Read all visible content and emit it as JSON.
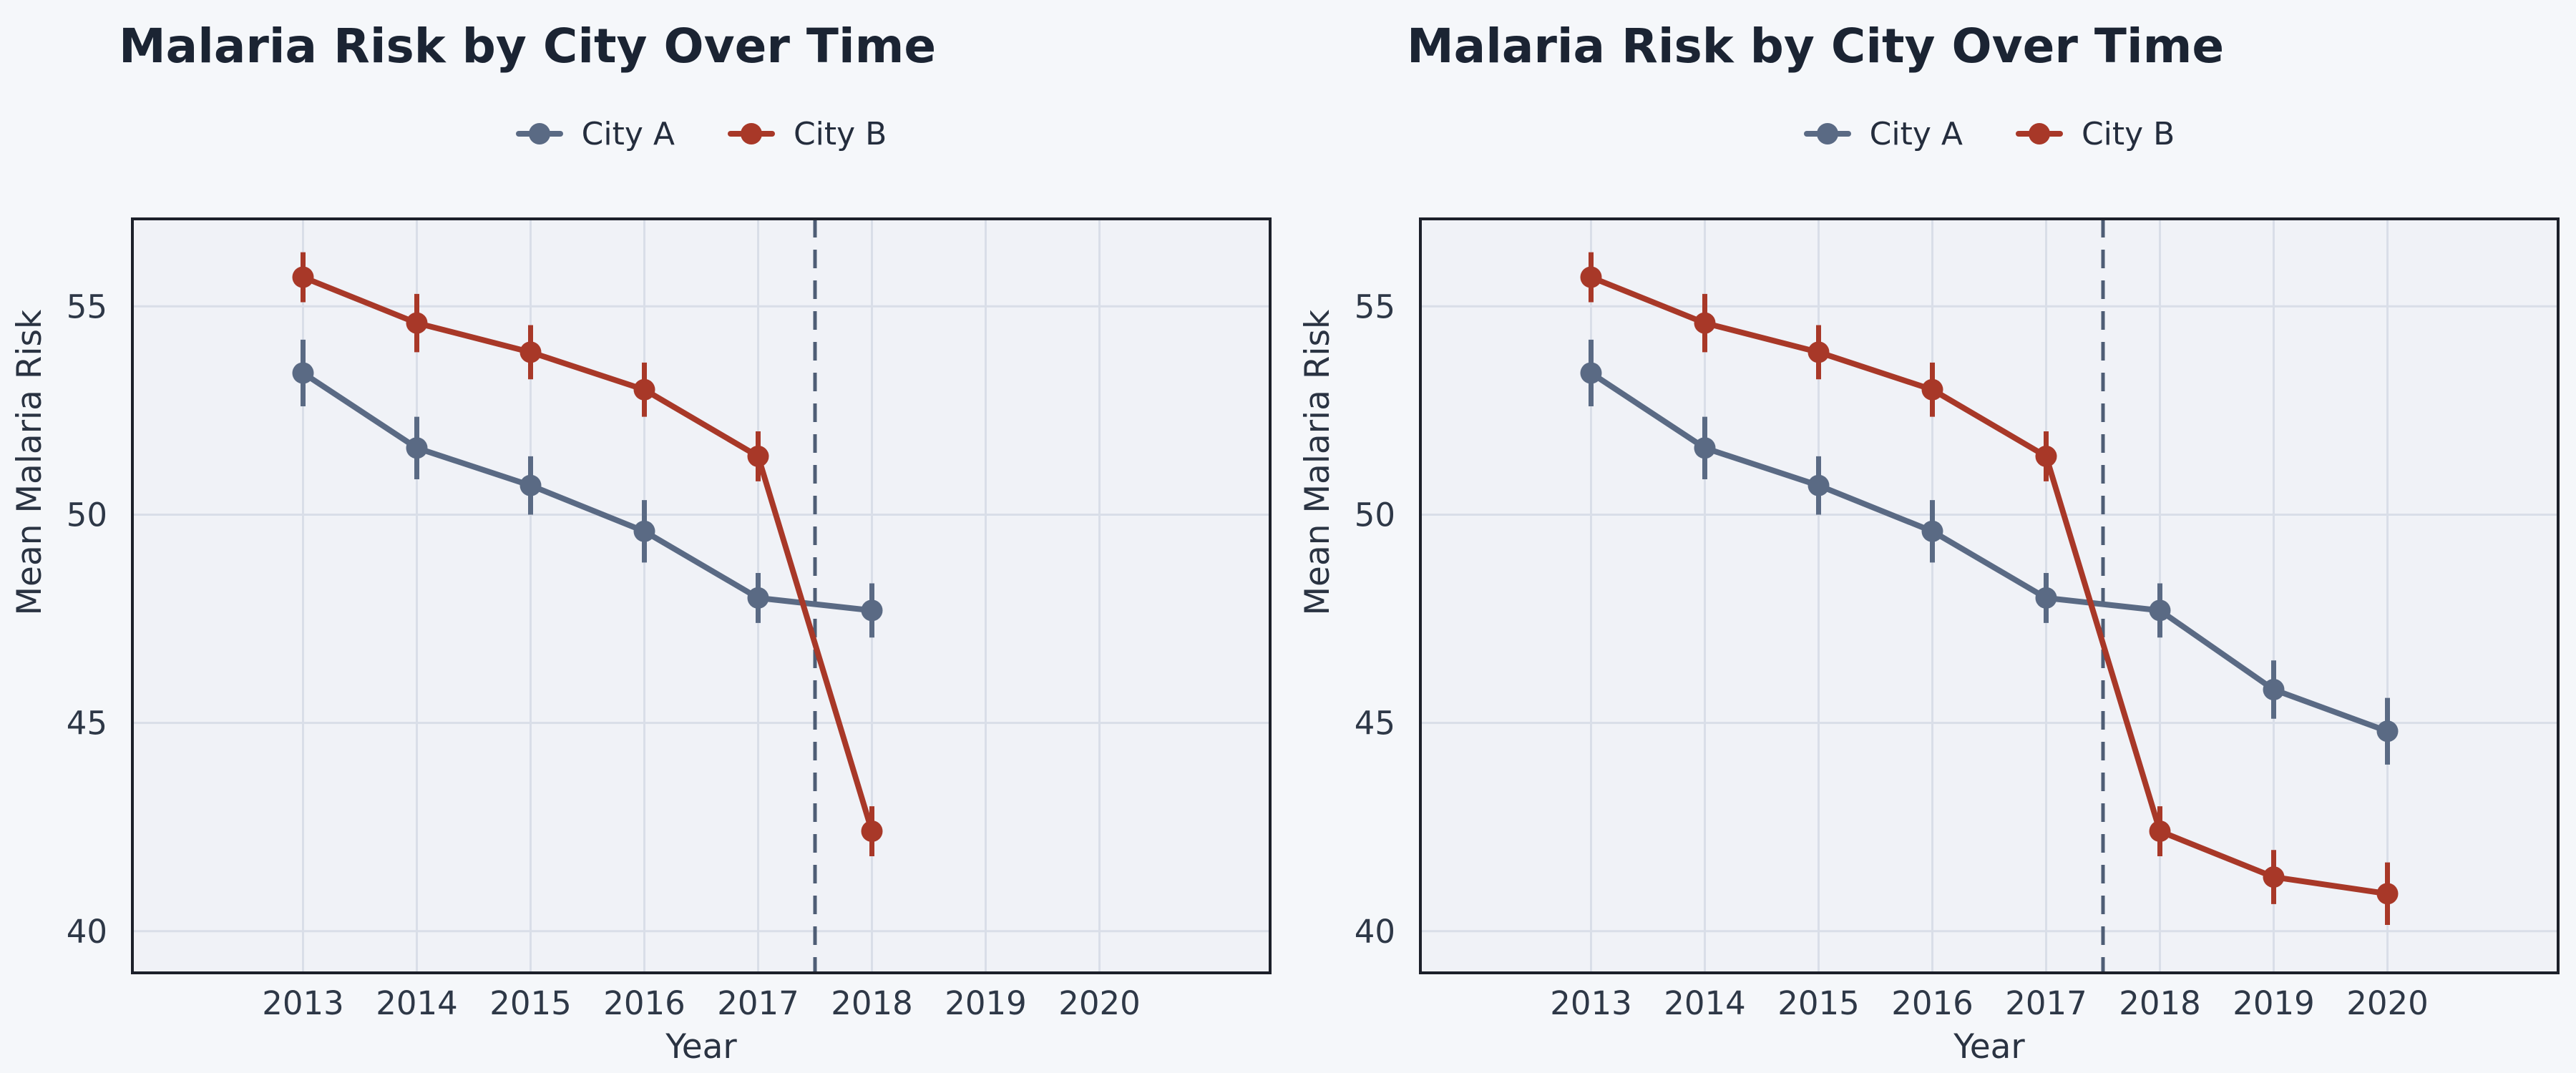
{
  "page": {
    "background": "#f5f7fa",
    "plot_background": "#f0f2f7",
    "grid_color": "#d9dee8",
    "spine_color": "#1c202a",
    "tick_text_color": "#2e3847",
    "title_color": "#1b2433"
  },
  "chart_data": [
    {
      "type": "line",
      "title": "Malaria Risk by City Over Time",
      "xlabel": "Year",
      "ylabel": "Mean Malaria Risk",
      "xlim": [
        2011.5,
        2021.5
      ],
      "ylim": [
        39.0,
        57.1
      ],
      "x_ticks": [
        "2013",
        "2014",
        "2015",
        "2016",
        "2017",
        "2018",
        "2019",
        "2020"
      ],
      "y_ticks": [
        "40",
        "45",
        "50",
        "55"
      ],
      "grid": true,
      "legend_position": "top-center",
      "reference_line": {
        "x": 2017.5,
        "style": "dashed",
        "color": "#4e5d75"
      },
      "series": [
        {
          "name": "City A",
          "color": "#5a6a84",
          "x": [
            2013,
            2014,
            2015,
            2016,
            2017,
            2018
          ],
          "y": [
            53.4,
            51.6,
            50.7,
            49.6,
            48.0,
            47.7
          ],
          "yerr": [
            0.8,
            0.75,
            0.7,
            0.75,
            0.6,
            0.65
          ]
        },
        {
          "name": "City B",
          "color": "#a83828",
          "x": [
            2013,
            2014,
            2015,
            2016,
            2017,
            2018
          ],
          "y": [
            55.7,
            54.6,
            53.9,
            53.0,
            51.4,
            42.4
          ],
          "yerr": [
            0.6,
            0.7,
            0.65,
            0.65,
            0.6,
            0.6
          ]
        }
      ]
    },
    {
      "type": "line",
      "title": "Malaria Risk by City Over Time",
      "xlabel": "Year",
      "ylabel": "Mean Malaria Risk",
      "xlim": [
        2011.5,
        2021.5
      ],
      "ylim": [
        39.0,
        57.1
      ],
      "x_ticks": [
        "2013",
        "2014",
        "2015",
        "2016",
        "2017",
        "2018",
        "2019",
        "2020"
      ],
      "y_ticks": [
        "40",
        "45",
        "50",
        "55"
      ],
      "grid": true,
      "legend_position": "top-center",
      "reference_line": {
        "x": 2017.5,
        "style": "dashed",
        "color": "#4e5d75"
      },
      "series": [
        {
          "name": "City A",
          "color": "#5a6a84",
          "x": [
            2013,
            2014,
            2015,
            2016,
            2017,
            2018,
            2019,
            2020
          ],
          "y": [
            53.4,
            51.6,
            50.7,
            49.6,
            48.0,
            47.7,
            45.8,
            44.8
          ],
          "yerr": [
            0.8,
            0.75,
            0.7,
            0.75,
            0.6,
            0.65,
            0.7,
            0.8
          ]
        },
        {
          "name": "City B",
          "color": "#a83828",
          "x": [
            2013,
            2014,
            2015,
            2016,
            2017,
            2018,
            2019,
            2020
          ],
          "y": [
            55.7,
            54.6,
            53.9,
            53.0,
            51.4,
            42.4,
            41.3,
            40.9
          ],
          "yerr": [
            0.6,
            0.7,
            0.65,
            0.65,
            0.6,
            0.6,
            0.65,
            0.75
          ]
        }
      ]
    }
  ]
}
